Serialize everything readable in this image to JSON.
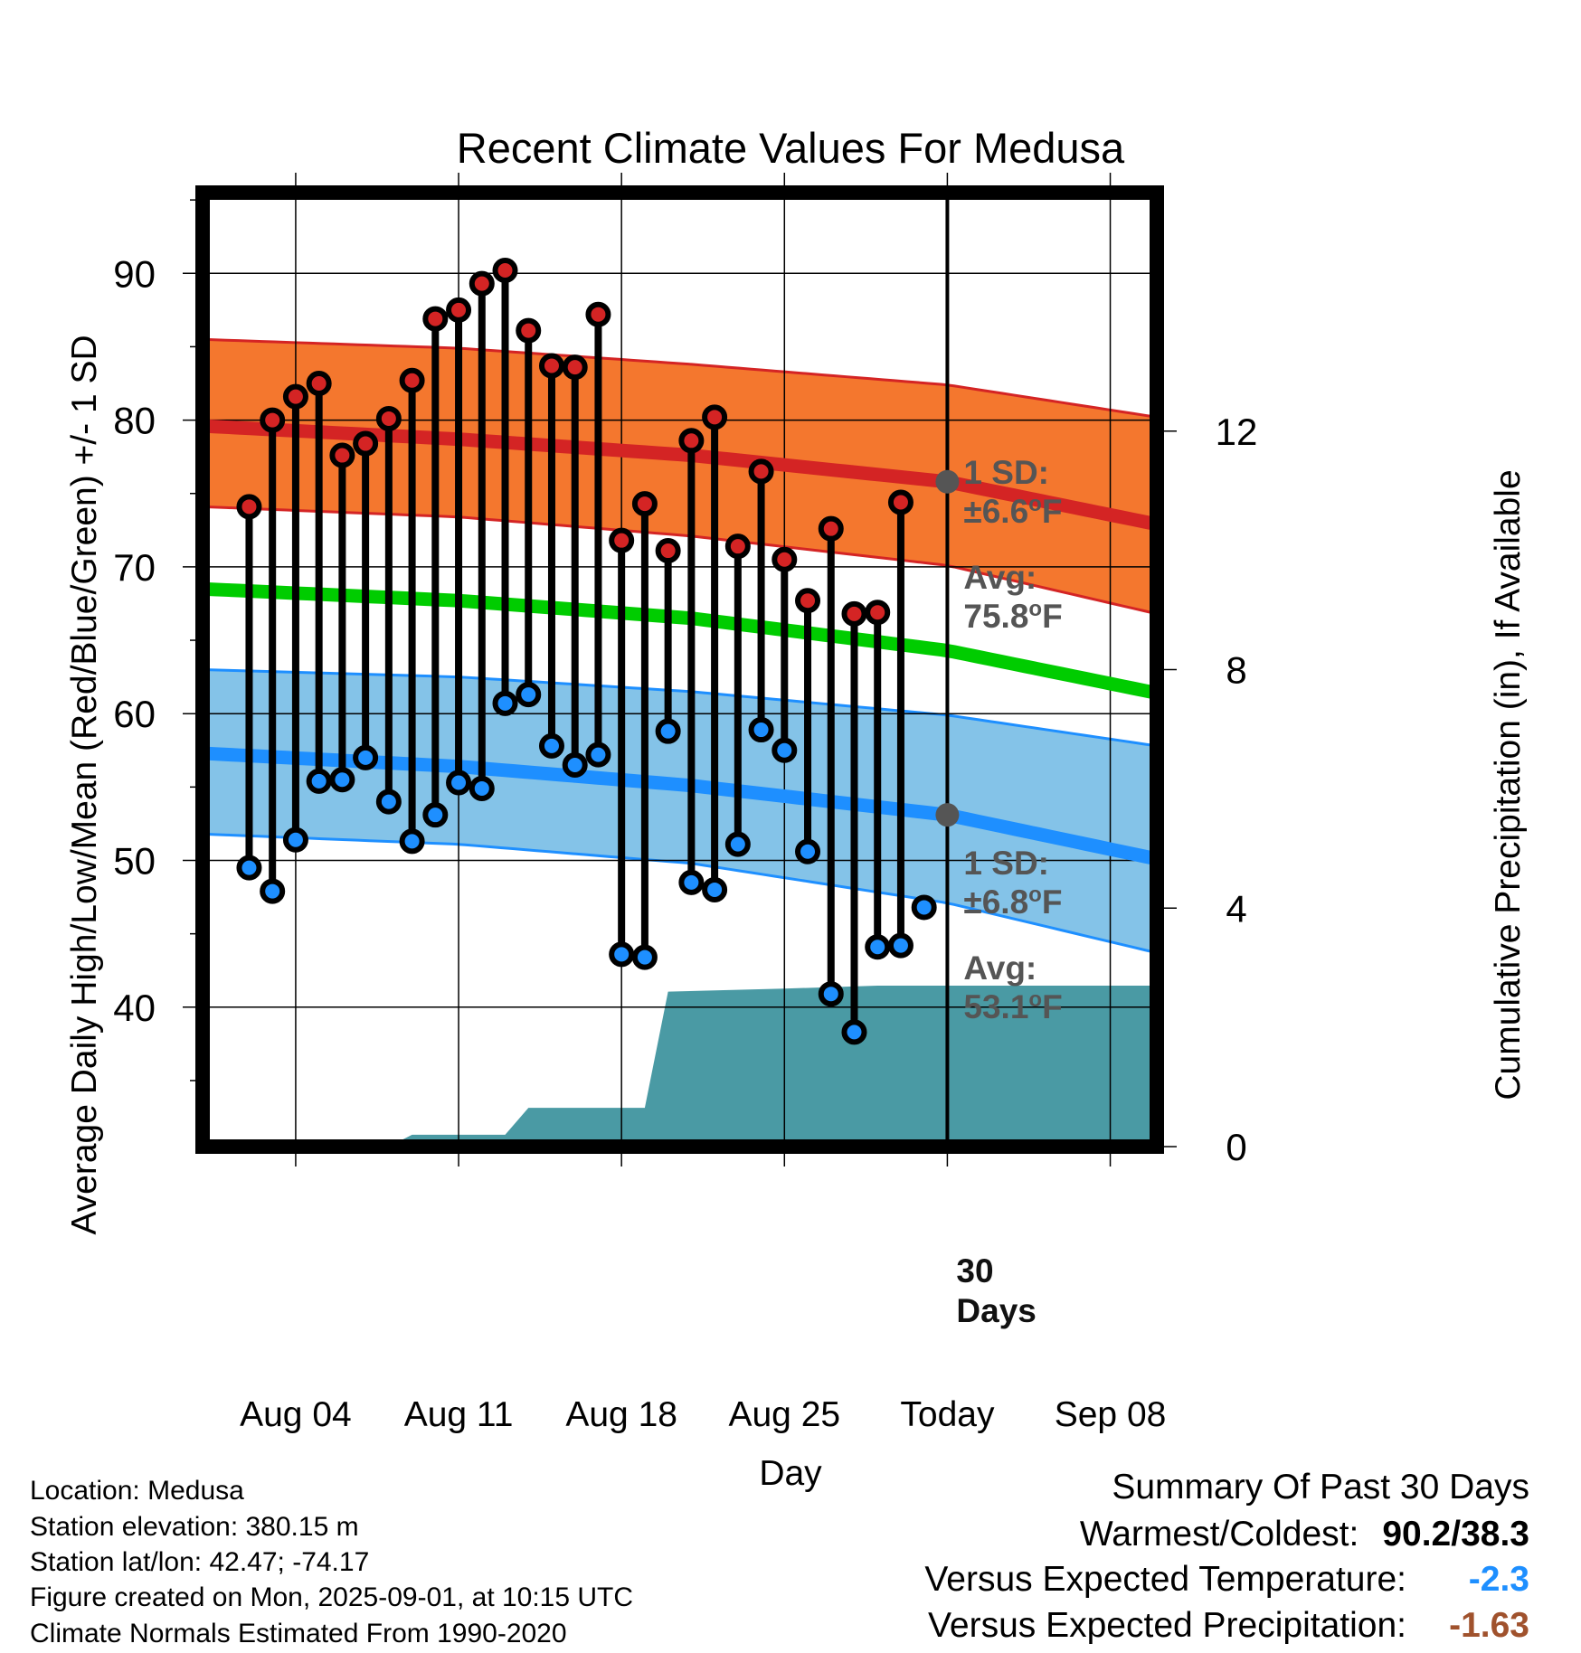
{
  "chart_data": {
    "type": "line",
    "title": "Recent Climate Values For Medusa",
    "xlabel": "Day",
    "ylabel": "Average Daily High/Low/Mean (Red/Blue/Green) +/- 1 SD",
    "ylabel_right": "Cumulative Precipitation (in), If Available",
    "x_range": [
      "2025-07-31",
      "2025-09-10"
    ],
    "ylim": [
      30.5,
      95.5
    ],
    "y_ticks": [
      40,
      50,
      60,
      70,
      80,
      90
    ],
    "ylim_right": [
      0,
      16
    ],
    "y_ticks_right": [
      0,
      4,
      8,
      12
    ],
    "x_ticks": [
      {
        "date": "2025-08-04",
        "label": "Aug 04"
      },
      {
        "date": "2025-08-11",
        "label": "Aug 11"
      },
      {
        "date": "2025-08-18",
        "label": "Aug 18"
      },
      {
        "date": "2025-08-25",
        "label": "Aug 25"
      },
      {
        "date": "2025-09-01",
        "label": "Today"
      },
      {
        "date": "2025-09-08",
        "label": "Sep 08"
      }
    ],
    "grid": true,
    "today": "2025-09-01",
    "daily": {
      "dates": [
        "2025-08-02",
        "2025-08-03",
        "2025-08-04",
        "2025-08-05",
        "2025-08-06",
        "2025-08-07",
        "2025-08-08",
        "2025-08-09",
        "2025-08-10",
        "2025-08-11",
        "2025-08-12",
        "2025-08-13",
        "2025-08-14",
        "2025-08-15",
        "2025-08-16",
        "2025-08-17",
        "2025-08-18",
        "2025-08-19",
        "2025-08-20",
        "2025-08-21",
        "2025-08-22",
        "2025-08-23",
        "2025-08-24",
        "2025-08-25",
        "2025-08-26",
        "2025-08-27",
        "2025-08-28",
        "2025-08-29",
        "2025-08-30",
        "2025-08-31"
      ],
      "highs": [
        74.1,
        80.0,
        81.6,
        82.5,
        77.6,
        78.4,
        80.1,
        82.7,
        86.9,
        87.5,
        89.3,
        90.2,
        86.1,
        83.7,
        83.6,
        87.2,
        71.8,
        74.3,
        71.1,
        78.6,
        80.2,
        71.4,
        76.5,
        70.5,
        67.7,
        72.6,
        66.8,
        66.9,
        74.4,
        null
      ],
      "lows": [
        49.5,
        47.9,
        51.4,
        55.4,
        55.5,
        57.0,
        54.0,
        51.3,
        53.1,
        55.3,
        54.9,
        60.7,
        61.3,
        57.8,
        56.5,
        57.2,
        43.6,
        43.4,
        58.8,
        48.5,
        48.0,
        51.1,
        58.9,
        57.5,
        50.6,
        40.9,
        38.3,
        44.1,
        44.2,
        46.8
      ]
    },
    "normals": {
      "dates": [
        "2025-07-31",
        "2025-08-11",
        "2025-08-21",
        "2025-09-01",
        "2025-09-10"
      ],
      "avg_high": [
        79.6,
        78.7,
        77.6,
        75.8,
        72.9
      ],
      "avg_high_upper_sd": [
        85.5,
        84.9,
        83.8,
        82.4,
        80.2
      ],
      "avg_high_lower_sd": [
        74.1,
        73.4,
        72.1,
        70.1,
        66.8
      ],
      "avg_mean": [
        68.5,
        67.7,
        66.5,
        64.3,
        61.4
      ],
      "avg_low": [
        57.3,
        56.4,
        55.1,
        53.1,
        50.1
      ],
      "avg_low_upper_sd": [
        63.0,
        62.5,
        61.5,
        59.9,
        57.8
      ],
      "avg_low_lower_sd": [
        51.8,
        51.1,
        49.8,
        47.1,
        43.7
      ]
    },
    "precip": {
      "dates": [
        "2025-07-31",
        "2025-08-08",
        "2025-08-09",
        "2025-08-13",
        "2025-08-14",
        "2025-08-19",
        "2025-08-20",
        "2025-08-25",
        "2025-08-29",
        "2025-09-01",
        "2025-09-10"
      ],
      "cumulative_in": [
        0,
        0,
        0.2,
        0.2,
        0.65,
        0.65,
        2.6,
        2.65,
        2.7,
        2.7,
        2.7
      ]
    },
    "annotations": {
      "high_sd_label": "1 SD:",
      "high_sd_value": "±6.6",
      "high_avg_label": "Avg:",
      "high_avg_value": "75.8",
      "low_sd_label": "1 SD:",
      "low_sd_value": "±6.8",
      "low_avg_label": "Avg:",
      "low_avg_value": "53.1",
      "degree_unit": "o",
      "unit_letter": "F",
      "days_count": "30",
      "days_word": "Days"
    },
    "colors": {
      "high_band": "#F4772E",
      "high_line": "#D42424",
      "mean_line": "#00CC00",
      "low_band": "#84C3E8",
      "low_line": "#1E8FFF",
      "precip_fill": "#4A9AA4",
      "high_dot": "#D42424",
      "low_dot": "#1E8FFF",
      "annotation_text": "#555555",
      "today_dot": "#555555"
    }
  },
  "info": {
    "location": "Location: Medusa",
    "elevation": "Station elevation: 380.15 m",
    "latlon": "Station lat/lon: 42.47; -74.17",
    "created": "Figure created on Mon, 2025-09-01, at 10:15 UTC",
    "normals": "Climate Normals Estimated From 1990-2020"
  },
  "summary": {
    "title": "Summary Of Past 30 Days",
    "warm_cold_label": "Warmest/Coldest:",
    "warm_cold_value": "90.2/38.3",
    "temp_label": "Versus Expected Temperature:",
    "temp_value": "-2.3",
    "temp_color": "#1E8FFF",
    "precip_label": "Versus Expected Precipitation:",
    "precip_value": "-1.63",
    "precip_color": "#A0522D"
  }
}
